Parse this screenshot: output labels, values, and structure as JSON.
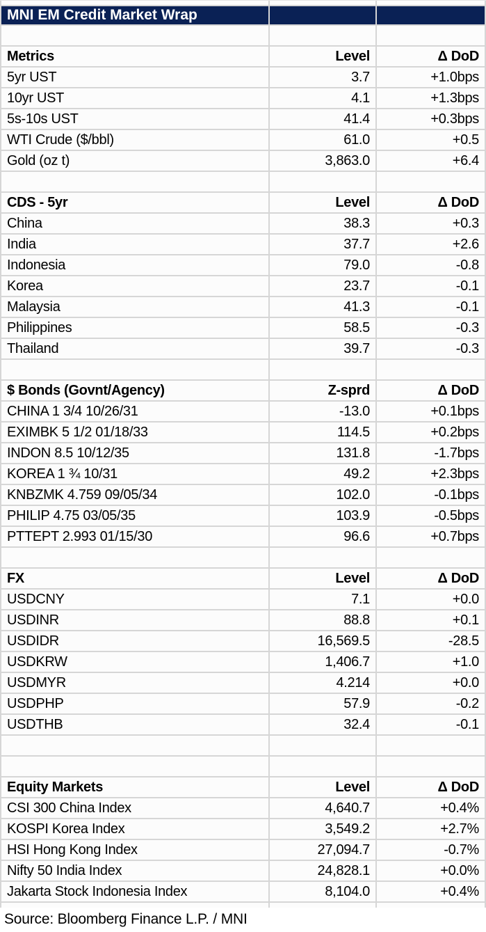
{
  "title": "MNI EM Credit Market Wrap",
  "source": "Source: Bloomberg Finance L.P. / MNI",
  "colors": {
    "title_bar_bg": "#0a2155",
    "title_bar_text": "#ffffff",
    "gridline": "#d6d6d6",
    "text": "#000000"
  },
  "sections": [
    {
      "title": "Metrics",
      "value_header": "Level",
      "change_header": "Δ DoD",
      "blank_rows_after": 1,
      "rows": [
        {
          "label": "5yr UST",
          "value": "3.7",
          "change": "+1.0bps"
        },
        {
          "label": "10yr UST",
          "value": "4.1",
          "change": "+1.3bps"
        },
        {
          "label": "5s-10s UST",
          "value": "41.4",
          "change": "+0.3bps"
        },
        {
          "label": "WTI Crude ($/bbl)",
          "value": "61.0",
          "change": "+0.5"
        },
        {
          "label": "Gold (oz t)",
          "value": "3,863.0",
          "change": "+6.4"
        }
      ]
    },
    {
      "title": "CDS - 5yr",
      "value_header": "Level",
      "change_header": "Δ DoD",
      "blank_rows_after": 1,
      "rows": [
        {
          "label": "China",
          "value": "38.3",
          "change": "+0.3"
        },
        {
          "label": "India",
          "value": "37.7",
          "change": "+2.6"
        },
        {
          "label": "Indonesia",
          "value": "79.0",
          "change": "-0.8"
        },
        {
          "label": "Korea",
          "value": "23.7",
          "change": "-0.1"
        },
        {
          "label": "Malaysia",
          "value": "41.3",
          "change": "-0.1"
        },
        {
          "label": "Philippines",
          "value": "58.5",
          "change": "-0.3"
        },
        {
          "label": "Thailand",
          "value": "39.7",
          "change": "-0.3"
        }
      ]
    },
    {
      "title": "$ Bonds (Govnt/Agency)",
      "value_header": "Z-sprd",
      "change_header": "Δ DoD",
      "blank_rows_after": 1,
      "rows": [
        {
          "label": "CHINA 1 3/4 10/26/31",
          "value": "-13.0",
          "change": "+0.1bps"
        },
        {
          "label": "EXIMBK 5 1/2 01/18/33",
          "value": "114.5",
          "change": "+0.2bps"
        },
        {
          "label": "INDON 8.5 10/12/35",
          "value": "131.8",
          "change": "-1.7bps"
        },
        {
          "label": "KOREA 1 ¾ 10/31",
          "value": "49.2",
          "change": "+2.3bps"
        },
        {
          "label": "KNBZMK 4.759 09/05/34",
          "value": "102.0",
          "change": "-0.1bps"
        },
        {
          "label": "PHILIP 4.75 03/05/35",
          "value": "103.9",
          "change": "-0.5bps"
        },
        {
          "label": "PTTEPT 2.993 01/15/30",
          "value": "96.6",
          "change": "+0.7bps"
        }
      ]
    },
    {
      "title": "FX",
      "value_header": "Level",
      "change_header": "Δ DoD",
      "blank_rows_after": 2,
      "rows": [
        {
          "label": "USDCNY",
          "value": "7.1",
          "change": "+0.0"
        },
        {
          "label": "USDINR",
          "value": "88.8",
          "change": "+0.1"
        },
        {
          "label": "USDIDR",
          "value": "16,569.5",
          "change": "-28.5"
        },
        {
          "label": "USDKRW",
          "value": "1,406.7",
          "change": "+1.0"
        },
        {
          "label": "USDMYR",
          "value": "4.214",
          "change": "+0.0"
        },
        {
          "label": "USDPHP",
          "value": "57.9",
          "change": "-0.2"
        },
        {
          "label": "USDTHB",
          "value": "32.4",
          "change": "-0.1"
        }
      ]
    },
    {
      "title": "Equity Markets",
      "value_header": "Level",
      "change_header": "Δ DoD",
      "blank_rows_after": 0,
      "rows": [
        {
          "label": "CSI 300 China Index",
          "value": "4,640.7",
          "change": "+0.4%"
        },
        {
          "label": "KOSPI Korea Index",
          "value": "3,549.2",
          "change": "+2.7%"
        },
        {
          "label": "HSI Hong Kong Index",
          "value": "27,094.7",
          "change": "-0.7%"
        },
        {
          "label": "Nifty 50 India Index",
          "value": "24,828.1",
          "change": "+0.0%"
        },
        {
          "label": "Jakarta Stock Indonesia Index",
          "value": "8,104.0",
          "change": "+0.4%"
        }
      ]
    }
  ]
}
